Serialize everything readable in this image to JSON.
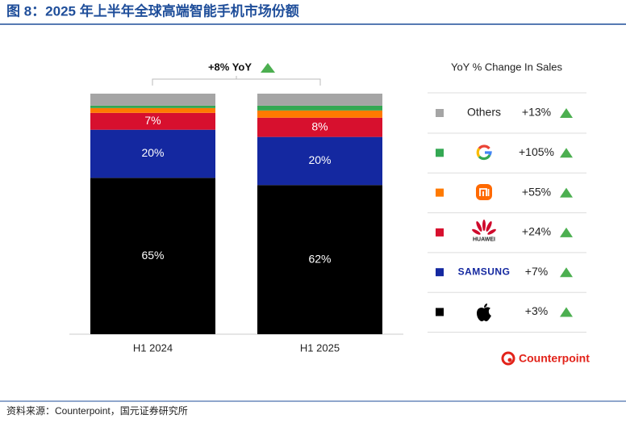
{
  "chart_data": {
    "type": "stacked_bar",
    "title": "图 8：2025 年上半年全球高端智能手机市场份额",
    "categories": [
      "H1 2024",
      "H1 2025"
    ],
    "ylim": [
      0,
      100
    ],
    "total_yoy": 8,
    "total_yoy_label": "+8% YoY",
    "legend_title": "YoY % Change In Sales",
    "series": [
      {
        "color": "#000000",
        "values": [
          65,
          62
        ],
        "value_labels": [
          "65%",
          "62%"
        ],
        "yoy": 3,
        "yoy_label": "+3%"
      },
      {
        "name": "SAMSUNG",
        "color": "#1428a0",
        "values": [
          20,
          20
        ],
        "value_labels": [
          "20%",
          "20%"
        ],
        "yoy": 7,
        "yoy_label": "+7%"
      },
      {
        "name": "HUAWEI",
        "color": "#d7102e",
        "values": [
          7,
          8
        ],
        "value_labels": [
          "7%",
          "8%"
        ],
        "yoy": 24,
        "yoy_label": "+24%"
      },
      {
        "color": "#ff7a00",
        "values": [
          2,
          3
        ],
        "value_labels": [
          null,
          null
        ],
        "yoy": 55,
        "yoy_label": "+55%"
      },
      {
        "color": "#34a853",
        "values": [
          1,
          2
        ],
        "value_labels": [
          null,
          null
        ],
        "yoy": 105,
        "yoy_label": "+105%"
      },
      {
        "name": "Others",
        "color": "#a5a5a5",
        "values": [
          5,
          5
        ],
        "value_labels": [
          null,
          null
        ],
        "yoy": 13,
        "yoy_label": "+13%"
      }
    ],
    "brand": "Counterpoint",
    "source": "资料来源：Counterpoint，国元证券研究所"
  }
}
